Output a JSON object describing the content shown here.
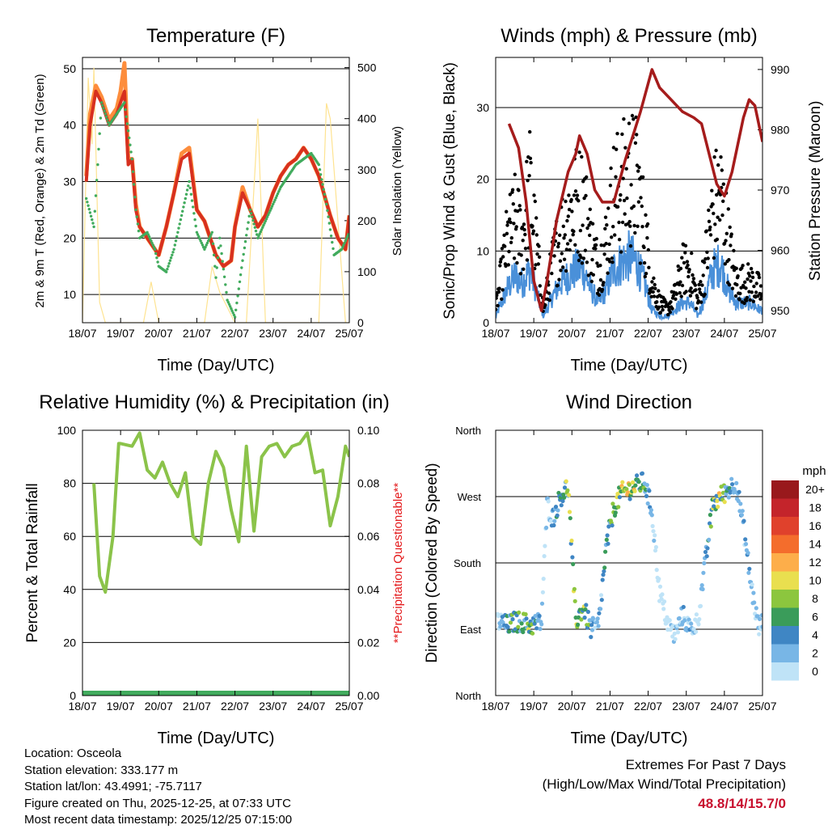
{
  "chart_data": [
    {
      "type": "line",
      "title": "Temperature (F)",
      "xlabel": "Time (Day/UTC)",
      "ylabel": "2m & 9m T (Red, Orange) & 2m Td (Green)",
      "ylabel_right": "Solar Insolation (Yellow)",
      "x_ticks": [
        "18/07",
        "19/07",
        "20/07",
        "21/07",
        "22/07",
        "23/07",
        "24/07",
        "25/07"
      ],
      "ylim": [
        5,
        52
      ],
      "y_ticks": [
        "10",
        "20",
        "30",
        "40",
        "50"
      ],
      "y2lim": [
        0,
        520
      ],
      "y2_ticks": [
        "0",
        "100",
        "200",
        "300",
        "400",
        "500"
      ],
      "grid": true,
      "series": [
        {
          "name": "2m T",
          "color": "#d7301f",
          "x": [
            0.1,
            0.2,
            0.35,
            0.5,
            0.7,
            0.9,
            1.0,
            1.1,
            1.2,
            1.3,
            1.4,
            1.5,
            1.7,
            1.9,
            2.0,
            2.2,
            2.4,
            2.6,
            2.8,
            3.0,
            3.1,
            3.2,
            3.3,
            3.5,
            3.7,
            3.9,
            4.0,
            4.2,
            4.4,
            4.6,
            4.8,
            5.0,
            5.2,
            5.4,
            5.6,
            5.8,
            6.0,
            6.2,
            6.5,
            6.7,
            6.9,
            7.0
          ],
          "values": [
            30,
            40,
            46,
            44,
            40,
            42,
            44,
            46,
            33,
            34,
            25,
            22,
            20,
            18,
            17,
            22,
            28,
            34,
            35,
            25,
            24,
            23,
            21,
            17,
            15,
            16,
            22,
            28,
            25,
            22,
            24,
            28,
            31,
            33,
            34,
            36,
            34,
            31,
            24,
            20,
            18,
            24
          ]
        },
        {
          "name": "9m T",
          "color": "#fd8d3c",
          "x": [
            0.1,
            0.2,
            0.35,
            0.5,
            0.7,
            0.9,
            1.0,
            1.1,
            1.2,
            1.3,
            1.4,
            1.5,
            1.7,
            1.9,
            2.0,
            2.2,
            2.4,
            2.6,
            2.8,
            3.0,
            3.1,
            3.2,
            3.3,
            3.5,
            3.7,
            3.9,
            4.0,
            4.2,
            4.4,
            4.6,
            4.8,
            5.0,
            5.2,
            5.4,
            5.6,
            5.8,
            6.0,
            6.2,
            6.5,
            6.7,
            6.9,
            7.0
          ],
          "values": [
            31,
            42,
            47,
            45,
            41,
            43,
            46,
            51,
            34,
            34,
            26,
            22,
            20,
            18,
            17,
            22,
            28,
            35,
            36,
            25,
            24,
            23,
            21,
            17,
            15,
            16,
            22,
            29,
            25,
            22,
            24,
            28,
            31,
            33,
            34,
            36,
            34,
            31,
            24,
            20,
            18,
            24
          ]
        },
        {
          "name": "2m Td",
          "color": "#41ab5d",
          "x": [
            0.1,
            0.3,
            0.5,
            0.7,
            0.9,
            1.0,
            1.1,
            1.3,
            1.4,
            1.5,
            1.7,
            1.9,
            2.0,
            2.2,
            2.4,
            2.6,
            2.8,
            3.0,
            3.2,
            3.4,
            3.5,
            3.6,
            3.8,
            4.0,
            4.2,
            4.4,
            4.6,
            4.8,
            5.0,
            5.2,
            5.4,
            5.6,
            5.8,
            6.0,
            6.2,
            6.4,
            6.6,
            6.8,
            7.0
          ],
          "values": [
            27,
            22,
            44,
            40,
            42,
            43,
            44,
            34,
            25,
            20,
            21,
            18,
            15,
            14,
            18,
            24,
            30,
            21,
            18,
            21,
            13,
            20,
            9,
            6,
            16,
            25,
            20,
            23,
            26,
            29,
            31,
            33,
            34,
            35,
            33,
            26,
            17,
            18,
            21
          ]
        },
        {
          "name": "Solar Insolation",
          "color": "#fee391",
          "axis": "right",
          "x": [
            0,
            0.15,
            0.25,
            0.3,
            0.45,
            0.6,
            0.9,
            1.05,
            1.6,
            1.8,
            2.0,
            2.6,
            2.9,
            3.2,
            3.4,
            3.6,
            4.0,
            4.3,
            4.6,
            4.8,
            5.5,
            5.9,
            6.2,
            6.4,
            6.5,
            6.9,
            7.0
          ],
          "values": [
            0,
            480,
            350,
            500,
            40,
            0,
            0,
            0,
            0,
            80,
            0,
            0,
            0,
            0,
            110,
            60,
            0,
            0,
            400,
            0,
            0,
            0,
            0,
            430,
            400,
            0,
            0
          ]
        }
      ]
    },
    {
      "type": "scatter",
      "title": "Winds (mph) & Pressure (mb)",
      "xlabel": "Time (Day/UTC)",
      "ylabel": "Sonic/Prop Wind & Gust (Blue, Black)",
      "ylabel_right": "Station Pressure (Maroon)",
      "x_ticks": [
        "18/07",
        "19/07",
        "20/07",
        "21/07",
        "22/07",
        "23/07",
        "24/07",
        "25/07"
      ],
      "ylim": [
        0,
        37
      ],
      "y_ticks": [
        "0",
        "10",
        "20",
        "30"
      ],
      "y2lim": [
        948,
        992
      ],
      "y2_ticks": [
        "950",
        "960",
        "970",
        "980",
        "990"
      ],
      "grid": true,
      "series": [
        {
          "name": "Gust",
          "color": "#000000",
          "x": [
            0.0,
            0.3,
            0.5,
            0.7,
            0.9,
            1.05,
            1.25,
            1.5,
            1.7,
            1.9,
            2.1,
            2.3,
            2.5,
            2.7,
            2.9,
            3.1,
            3.3,
            3.5,
            3.7,
            3.9,
            4.1,
            4.3,
            4.5,
            4.7,
            4.9,
            5.1,
            5.3,
            5.5,
            5.7,
            5.9,
            6.1,
            6.3,
            6.5,
            6.7,
            6.9,
            7.0
          ],
          "values": [
            2,
            12,
            15,
            13,
            20,
            12,
            2,
            9,
            13,
            16,
            18,
            18,
            12,
            8,
            12,
            19,
            20,
            22,
            21,
            14,
            6,
            3,
            2,
            4,
            8,
            8,
            3,
            9,
            17,
            19,
            12,
            6,
            6,
            6,
            5,
            4
          ]
        },
        {
          "name": "Wind",
          "color": "#4a90d9",
          "x": [
            0.0,
            0.3,
            0.5,
            0.7,
            0.9,
            1.05,
            1.25,
            1.5,
            1.7,
            1.9,
            2.1,
            2.3,
            2.5,
            2.7,
            2.9,
            3.1,
            3.3,
            3.5,
            3.7,
            3.9,
            4.1,
            4.3,
            4.5,
            4.7,
            4.9,
            5.1,
            5.3,
            5.5,
            5.7,
            5.9,
            6.1,
            6.3,
            6.5,
            6.7,
            6.9,
            7.0
          ],
          "values": [
            1,
            5,
            7,
            6,
            8,
            5,
            1,
            4,
            6,
            7,
            8,
            8,
            5,
            3,
            5,
            8,
            9,
            10,
            9,
            6,
            2,
            1,
            1,
            2,
            3,
            3,
            1,
            4,
            8,
            9,
            5,
            3,
            3,
            3,
            2,
            2
          ]
        },
        {
          "name": "Station Pressure",
          "color": "#a51c1c",
          "axis": "right",
          "x": [
            0.35,
            0.6,
            0.8,
            1.0,
            1.2,
            1.35,
            1.6,
            1.9,
            2.1,
            2.2,
            2.4,
            2.6,
            2.8,
            3.1,
            3.4,
            3.8,
            4.1,
            4.3,
            4.6,
            4.9,
            5.2,
            5.4,
            5.6,
            5.8,
            6.0,
            6.2,
            6.5,
            6.65,
            6.8,
            7.0
          ]
        },
        {
          "name": "Station Pressure values",
          "values": [
            981,
            977,
            968,
            955,
            950,
            955,
            965,
            973,
            976,
            979,
            976,
            970,
            968,
            968,
            975,
            983,
            990,
            987,
            985,
            983,
            982,
            981,
            976,
            971,
            969,
            973,
            982,
            985,
            984,
            978
          ]
        }
      ]
    },
    {
      "type": "line",
      "title": "Relative Humidity (%) & Precipitation (in)",
      "xlabel": "Time (Day/UTC)",
      "ylabel": "Percent & Total Rainfall",
      "ylabel_right": "**Precipitation Questionable**",
      "x_ticks": [
        "18/07",
        "19/07",
        "20/07",
        "21/07",
        "22/07",
        "23/07",
        "24/07",
        "25/07"
      ],
      "ylim": [
        0,
        100
      ],
      "y_ticks": [
        "0",
        "20",
        "40",
        "60",
        "80",
        "100"
      ],
      "y2lim": [
        0,
        0.1
      ],
      "y2_ticks": [
        "0.00",
        "0.02",
        "0.04",
        "0.06",
        "0.08",
        "0.10"
      ],
      "grid": true,
      "series": [
        {
          "name": "Relative Humidity",
          "color": "#8bc34a",
          "x": [
            0.3,
            0.45,
            0.6,
            0.8,
            0.95,
            1.0,
            1.3,
            1.5,
            1.7,
            1.9,
            2.1,
            2.3,
            2.5,
            2.7,
            2.9,
            3.1,
            3.3,
            3.5,
            3.7,
            3.9,
            4.1,
            4.3,
            4.5,
            4.7,
            4.9,
            5.1,
            5.3,
            5.5,
            5.7,
            5.9,
            6.1,
            6.3,
            6.5,
            6.7,
            6.9,
            7.0
          ],
          "values": [
            80,
            45,
            39,
            60,
            95,
            95,
            94,
            99,
            85,
            82,
            88,
            80,
            75,
            84,
            60,
            57,
            80,
            92,
            86,
            70,
            58,
            94,
            62,
            90,
            94,
            95,
            90,
            94,
            95,
            99,
            84,
            85,
            64,
            75,
            94,
            90
          ]
        },
        {
          "name": "Total Precipitation",
          "color": "#41ab5d",
          "axis": "right",
          "x": [
            0,
            7
          ],
          "values": [
            0,
            0
          ]
        }
      ]
    },
    {
      "type": "scatter",
      "title": "Wind Direction",
      "xlabel": "Time (Day/UTC)",
      "ylabel": "Direction (Colored By Speed)",
      "x_ticks": [
        "18/07",
        "19/07",
        "20/07",
        "21/07",
        "22/07",
        "23/07",
        "24/07",
        "25/07"
      ],
      "y_ticks": [
        "North",
        "East",
        "South",
        "West",
        "North"
      ],
      "ylim": [
        0,
        360
      ],
      "grid": true,
      "colorbar": {
        "title": "mph",
        "labels": [
          "20+",
          "18",
          "16",
          "14",
          "12",
          "10",
          "8",
          "6",
          "4",
          "2",
          "0"
        ],
        "colors": [
          "#99191c",
          "#c4242b",
          "#e0412c",
          "#f46d2c",
          "#fdae4a",
          "#e9df4f",
          "#8cc63e",
          "#3a9c5a",
          "#3f86c4",
          "#78b6e6",
          "#bfe3f7"
        ]
      },
      "series": [
        {
          "name": "Wind direction (deg)",
          "x": [
            0.1,
            0.3,
            0.5,
            0.7,
            0.9,
            1.2,
            1.35,
            1.5,
            1.7,
            1.9,
            2.1,
            2.3,
            2.5,
            2.7,
            2.9,
            3.1,
            3.3,
            3.5,
            3.7,
            3.9,
            4.1,
            4.3,
            4.5,
            4.7,
            4.9,
            5.1,
            5.3,
            5.5,
            5.7,
            5.9,
            6.1,
            6.3,
            6.5,
            6.7,
            6.9,
            7.0
          ],
          "values": [
            100,
            95,
            100,
            100,
            95,
            100,
            260,
            240,
            270,
            285,
            100,
            120,
            90,
            95,
            200,
            255,
            275,
            280,
            285,
            290,
            250,
            140,
            100,
            80,
            110,
            90,
            100,
            180,
            260,
            270,
            280,
            290,
            230,
            150,
            90,
            100
          ]
        }
      ]
    }
  ],
  "info": {
    "location": "Location: Osceola",
    "elevation": "Station elevation: 333.177 m",
    "latlon": "Station lat/lon: 43.4991; -75.7117",
    "created": "Figure created on Thu, 2025-12-25, at 07:33 UTC",
    "recent": "Most recent data timestamp: 2025/12/25 07:15:00"
  },
  "extremes": {
    "title": "Extremes For Past 7 Days",
    "subtitle": "(High/Low/Max Wind/Total Precipitation)",
    "values": "48.8/14/15.7/0"
  }
}
